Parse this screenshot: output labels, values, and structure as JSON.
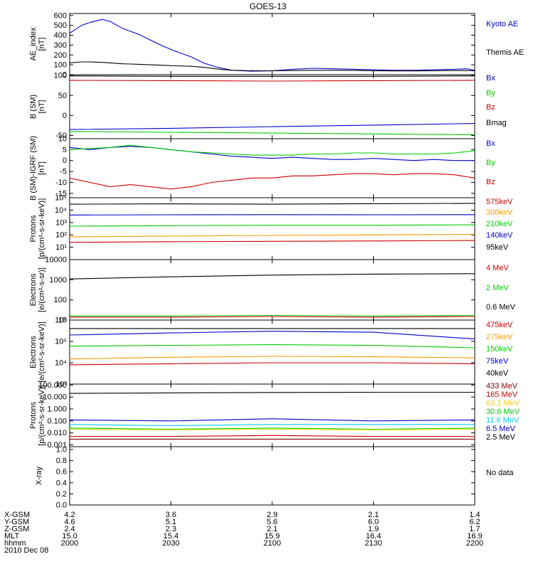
{
  "title": "GOES-13",
  "chart_data": [
    {
      "type": "line",
      "ylabel": [
        "AE_index",
        "[nT]"
      ],
      "ylim": [
        0,
        620
      ],
      "ticks": [
        {
          "v": 0,
          "label": "0"
        },
        {
          "v": 100,
          "label": "100"
        },
        {
          "v": 200,
          "label": "200"
        },
        {
          "v": 300,
          "label": "300"
        },
        {
          "v": 400,
          "label": "400"
        },
        {
          "v": 500,
          "label": "500"
        },
        {
          "v": 600,
          "label": "600"
        }
      ],
      "x_norm": [
        0,
        0.03,
        0.05,
        0.08,
        0.1,
        0.13,
        0.15,
        0.17,
        0.2,
        0.23,
        0.26,
        0.3,
        0.33,
        0.36,
        0.4,
        0.45,
        0.5,
        0.55,
        0.6,
        0.65,
        0.7,
        0.75,
        0.8,
        0.85,
        0.9,
        0.95,
        0.98,
        1
      ],
      "series": [
        {
          "name": "Kyoto AE",
          "color": "#0000cc",
          "values": [
            420,
            500,
            530,
            560,
            540,
            470,
            440,
            410,
            350,
            290,
            240,
            180,
            120,
            80,
            45,
            35,
            40,
            55,
            65,
            60,
            55,
            50,
            45,
            45,
            50,
            55,
            60,
            45
          ]
        },
        {
          "name": "Themis AE",
          "color": "#000000",
          "values": [
            120,
            130,
            130,
            125,
            120,
            110,
            108,
            105,
            100,
            95,
            90,
            85,
            75,
            60,
            45,
            40,
            40,
            42,
            45,
            45,
            43,
            40,
            38,
            38,
            40,
            42,
            42,
            40
          ]
        }
      ],
      "legend": [
        {
          "text": "Kyoto AE",
          "color": "#0000cc"
        },
        {
          "text": "Themis AE",
          "color": "#000000"
        }
      ]
    },
    {
      "type": "line",
      "ylabel": [
        "B (SM)",
        "[nT]"
      ],
      "ylim": [
        -58,
        102
      ],
      "ticks": [
        {
          "v": -50,
          "label": "-50"
        },
        {
          "v": 0,
          "label": "0"
        },
        {
          "v": 50,
          "label": "50"
        },
        {
          "v": 100,
          "label": "100"
        }
      ],
      "x_norm": [
        0,
        0.25,
        0.5,
        0.75,
        1
      ],
      "series": [
        {
          "name": "Bx",
          "color": "#0000cc",
          "values": [
            -35,
            -32,
            -28,
            -24,
            -20
          ]
        },
        {
          "name": "By",
          "color": "#00cc00",
          "values": [
            -40,
            -42,
            -44,
            -46,
            -48
          ]
        },
        {
          "name": "Bz",
          "color": "#cc0000",
          "values": [
            88,
            87,
            86,
            87,
            88
          ]
        },
        {
          "name": "Bmag",
          "color": "#000000",
          "values": [
            99,
            98,
            98,
            98,
            99
          ]
        }
      ],
      "legend": [
        {
          "text": "Bx",
          "color": "#0000cc"
        },
        {
          "text": "By",
          "color": "#00cc00"
        },
        {
          "text": "Bz",
          "color": "#cc0000"
        },
        {
          "text": "Bmag",
          "color": "#000000"
        }
      ]
    },
    {
      "type": "line",
      "ylabel": [
        "B (SM)-IGRF (SM)",
        "[nT]"
      ],
      "ylim": [
        -17,
        10
      ],
      "ticks": [
        {
          "v": -15,
          "label": "-15"
        },
        {
          "v": -10,
          "label": "-10"
        },
        {
          "v": -5,
          "label": "-5"
        },
        {
          "v": 0,
          "label": "0"
        },
        {
          "v": 5,
          "label": "5"
        },
        {
          "v": 10,
          "label": "10"
        }
      ],
      "x_norm": [
        0,
        0.05,
        0.1,
        0.15,
        0.2,
        0.25,
        0.3,
        0.35,
        0.4,
        0.45,
        0.5,
        0.55,
        0.6,
        0.65,
        0.7,
        0.75,
        0.8,
        0.85,
        0.9,
        0.95,
        1
      ],
      "series": [
        {
          "name": "Bx",
          "color": "#0000cc",
          "values": [
            6,
            5,
            6,
            6.5,
            6,
            5,
            4,
            3,
            2,
            1.5,
            1,
            1.5,
            1,
            0.5,
            0.5,
            1,
            0.5,
            0,
            0.5,
            0,
            0
          ]
        },
        {
          "name": "By",
          "color": "#00cc00",
          "values": [
            5,
            5.5,
            6,
            7,
            6,
            5,
            4,
            3.5,
            3,
            2.5,
            2.5,
            2.5,
            3,
            3,
            3.5,
            3.5,
            3,
            3,
            3,
            3.5,
            4.5
          ]
        },
        {
          "name": "Bz",
          "color": "#cc0000",
          "values": [
            -8,
            -10,
            -12,
            -11,
            -12,
            -13,
            -12,
            -10,
            -9,
            -8,
            -8,
            -7,
            -7,
            -6.5,
            -6,
            -6,
            -6.5,
            -6,
            -6,
            -6.5,
            -8
          ]
        }
      ],
      "legend": [
        {
          "text": "Bx",
          "color": "#0000cc"
        },
        {
          "text": "By",
          "color": "#00cc00"
        },
        {
          "text": "Bz",
          "color": "#cc0000"
        }
      ]
    },
    {
      "type": "line",
      "log": true,
      "ylabel": [
        "Protons",
        "[p/(cm²-s-sr-keV)]"
      ],
      "ylim": [
        1,
        100000
      ],
      "ticks": [
        {
          "v": 10,
          "label": "10¹"
        },
        {
          "v": 100,
          "label": "10²"
        },
        {
          "v": 1000,
          "label": "10³"
        },
        {
          "v": 10000,
          "label": "10⁴"
        },
        {
          "v": 100000,
          "label": "10⁵"
        }
      ],
      "x_norm": [
        0,
        0.25,
        0.5,
        0.75,
        1
      ],
      "series": [
        {
          "name": "95keV",
          "color": "#000000",
          "values": [
            30000,
            32000,
            30000,
            33000,
            35000
          ]
        },
        {
          "name": "140keV",
          "color": "#0000cc",
          "values": [
            4000,
            4200,
            4300,
            4200,
            4300
          ]
        },
        {
          "name": "210keV",
          "color": "#00cc00",
          "values": [
            500,
            550,
            600,
            600,
            650
          ]
        },
        {
          "name": "300keV",
          "color": "#ff9900",
          "values": [
            70,
            80,
            90,
            100,
            110
          ]
        },
        {
          "name": "575keV",
          "color": "#cc0000",
          "values": [
            25,
            28,
            30,
            32,
            35
          ]
        }
      ],
      "legend": [
        {
          "text": "575keV",
          "color": "#cc0000"
        },
        {
          "text": "300keV",
          "color": "#ff9900"
        },
        {
          "text": "210keV",
          "color": "#00cc00"
        },
        {
          "text": "140keV",
          "color": "#0000cc"
        },
        {
          "text": "95keV",
          "color": "#000000"
        }
      ]
    },
    {
      "type": "line",
      "log": true,
      "ylabel": [
        "Electrons",
        "[e/(cm²-s-sr)]"
      ],
      "ylim": [
        10,
        10000
      ],
      "ticks": [
        {
          "v": 10,
          "label": "10"
        },
        {
          "v": 100,
          "label": "100"
        },
        {
          "v": 1000,
          "label": "1000"
        },
        {
          "v": 10000,
          "label": "10000"
        }
      ],
      "x_norm": [
        0,
        0.25,
        0.5,
        0.75,
        1
      ],
      "series": [
        {
          "name": "0.6 MeV",
          "color": "#000000",
          "values": [
            1100,
            1400,
            1700,
            1900,
            2000
          ]
        },
        {
          "name": "2 MeV",
          "color": "#00cc00",
          "values": [
            16,
            16,
            17,
            16,
            17
          ]
        },
        {
          "name": "4 MeV",
          "color": "#cc0000",
          "values": [
            14,
            14,
            15,
            14,
            15
          ]
        }
      ],
      "legend": [
        {
          "text": "4 MeV",
          "color": "#cc0000"
        },
        {
          "text": "2 MeV",
          "color": "#00cc00"
        },
        {
          "text": "0.6 MeV",
          "color": "#000000"
        }
      ]
    },
    {
      "type": "line",
      "log": true,
      "ylabel": [
        "Electrons",
        "[e/(cm²-s-sr-keV)]"
      ],
      "ylim": [
        1000,
        1000000
      ],
      "ticks": [
        {
          "v": 1000,
          "label": "10³"
        },
        {
          "v": 10000,
          "label": "10⁴"
        },
        {
          "v": 100000,
          "label": "10⁵"
        },
        {
          "v": 1000000,
          "label": "10⁶"
        }
      ],
      "x_norm": [
        0,
        0.25,
        0.5,
        0.75,
        1
      ],
      "series": [
        {
          "name": "40keV",
          "color": "#000000",
          "values": [
            400000,
            400000,
            400000,
            400000,
            400000
          ]
        },
        {
          "name": "75keV",
          "color": "#0000cc",
          "values": [
            200000,
            250000,
            300000,
            270000,
            130000
          ]
        },
        {
          "name": "150keV",
          "color": "#00cc00",
          "values": [
            60000,
            65000,
            70000,
            65000,
            50000
          ]
        },
        {
          "name": "275keV",
          "color": "#ff9900",
          "values": [
            15000,
            18000,
            20000,
            19000,
            17000
          ]
        },
        {
          "name": "475keV",
          "color": "#cc0000",
          "values": [
            8000,
            9000,
            10000,
            10000,
            9000
          ]
        }
      ],
      "legend": [
        {
          "text": "475keV",
          "color": "#cc0000"
        },
        {
          "text": "275keV",
          "color": "#ff9900"
        },
        {
          "text": "150keV",
          "color": "#00cc00"
        },
        {
          "text": "75keV",
          "color": "#0000cc"
        },
        {
          "text": "40keV",
          "color": "#000000"
        }
      ]
    },
    {
      "type": "line",
      "log": true,
      "ylabel": [
        "Protons",
        "[p/(cm²-s-sr-keV)]"
      ],
      "ylim": [
        0.0007,
        120
      ],
      "ticks": [
        {
          "v": 0.001,
          "label": "0.001"
        },
        {
          "v": 0.01,
          "label": "0.010"
        },
        {
          "v": 0.1,
          "label": "0.100"
        },
        {
          "v": 1,
          "label": "1.000"
        },
        {
          "v": 10,
          "label": "10.000"
        },
        {
          "v": 100,
          "label": "100.000"
        }
      ],
      "x_norm": [
        0,
        0.25,
        0.5,
        0.75,
        1
      ],
      "series": [
        {
          "name": "2.5 MeV",
          "color": "#000000",
          "values": [
            20,
            22,
            24,
            25,
            25
          ]
        },
        {
          "name": "6.5 MeV",
          "color": "#0000cc",
          "values": [
            0.12,
            0.1,
            0.15,
            0.1,
            0.12
          ]
        },
        {
          "name": "11.6 MeV",
          "color": "#00ccff",
          "values": [
            0.05,
            0.04,
            0.05,
            0.05,
            0.05
          ]
        },
        {
          "name": "30.6 MeV",
          "color": "#00cc00",
          "values": [
            0.025,
            0.02,
            0.025,
            0.02,
            0.025
          ]
        },
        {
          "name": "63.1 MeV",
          "color": "#ffdd00",
          "values": [
            0.02,
            0.018,
            0.02,
            0.018,
            0.02
          ]
        },
        {
          "name": "165 MeV",
          "color": "#cc0000",
          "values": [
            0.005,
            0.005,
            0.006,
            0.005,
            0.005
          ]
        },
        {
          "name": "433 MeV",
          "color": "#800000",
          "values": [
            0.003,
            0.003,
            0.003,
            0.003,
            0.003
          ]
        }
      ],
      "legend": [
        {
          "text": "433 MeV",
          "color": "#800000"
        },
        {
          "text": "165 MeV",
          "color": "#cc0000"
        },
        {
          "text": "63.1 MeV",
          "color": "#ffcc00"
        },
        {
          "text": "30.6 MeV",
          "color": "#00cc00"
        },
        {
          "text": "11.6 MeV",
          "color": "#00ccff"
        },
        {
          "text": "6.5 MeV",
          "color": "#0000cc"
        },
        {
          "text": "2.5 MeV",
          "color": "#000000"
        }
      ]
    },
    {
      "type": "line",
      "ylabel": [
        "X-ray",
        ""
      ],
      "ylim": [
        0,
        1.05
      ],
      "ticks": [
        {
          "v": 0,
          "label": "0.0"
        },
        {
          "v": 0.2,
          "label": "0.2"
        },
        {
          "v": 0.4,
          "label": "0.4"
        },
        {
          "v": 0.6,
          "label": "0.6"
        },
        {
          "v": 0.8,
          "label": "0.8"
        },
        {
          "v": 1.0,
          "label": "1.0"
        }
      ],
      "x_norm": [],
      "series": [],
      "legend": [
        {
          "text": "No data",
          "color": "#000000"
        }
      ]
    }
  ],
  "orbit_table": {
    "row_labels": [
      "X-GSM",
      "Y-GSM",
      "Z-GSM",
      "MLT",
      "hhmm",
      "2010 Dec 08"
    ],
    "columns": [
      [
        "4.2",
        "4.6",
        "2.4",
        "15.0",
        "2000"
      ],
      [
        "3.6",
        "5.1",
        "2.3",
        "15.4",
        "2030"
      ],
      [
        "2.9",
        "5.6",
        "2.1",
        "15.9",
        "2100"
      ],
      [
        "2.1",
        "6.0",
        "1.9",
        "16.4",
        "2130"
      ],
      [
        "1.4",
        "6.2",
        "1.7",
        "16.9",
        "2200"
      ]
    ]
  }
}
